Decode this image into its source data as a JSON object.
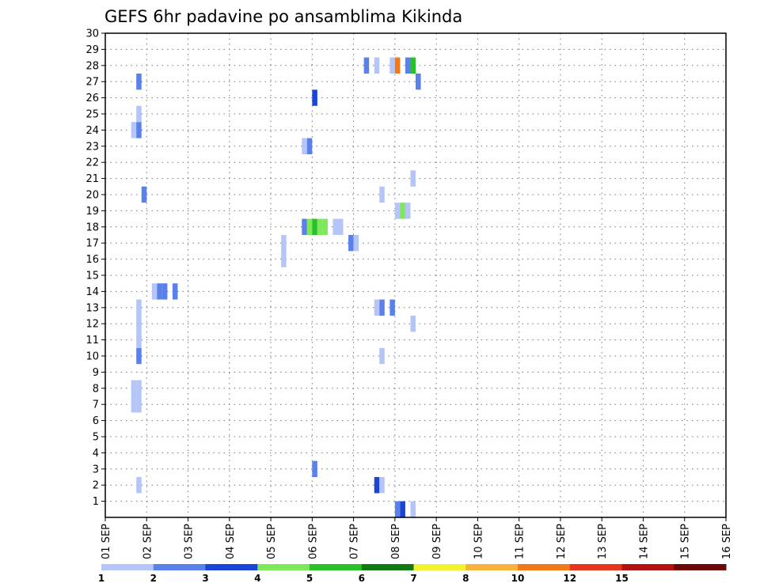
{
  "chart_data": {
    "type": "heatmap",
    "title": "GEFS 6hr padavine po ansamblima Kikinda",
    "x_labels": [
      "01 SEP",
      "02 SEP",
      "03 SEP",
      "04 SEP",
      "05 SEP",
      "06 SEP",
      "07 SEP",
      "08 SEP",
      "09 SEP",
      "10 SEP",
      "11 SEP",
      "12 SEP",
      "13 SEP",
      "14 SEP",
      "15 SEP",
      "16 SEP"
    ],
    "xlim": [
      0,
      60
    ],
    "ylim": [
      0,
      30
    ],
    "y_ticks": [
      1,
      2,
      3,
      4,
      5,
      6,
      7,
      8,
      9,
      10,
      11,
      12,
      13,
      14,
      15,
      16,
      17,
      18,
      19,
      20,
      21,
      22,
      23,
      24,
      25,
      26,
      27,
      28,
      29,
      30
    ],
    "grid": true,
    "color_levels": [
      1,
      2,
      3,
      4,
      5,
      6,
      7,
      8,
      10,
      12,
      15,
      20
    ],
    "level_colors": [
      "#b5c5f7",
      "#5a80ea",
      "#1a45d6",
      "#7ee85a",
      "#28c228",
      "#127a12",
      "#f2f230",
      "#f8b43a",
      "#f57818",
      "#e5351a",
      "#b21212",
      "#6e0808"
    ],
    "cells": [
      {
        "t": 2.75,
        "m": 24,
        "v": 1
      },
      {
        "t": 3.25,
        "m": 24,
        "v": 2
      },
      {
        "t": 3.25,
        "m": 25,
        "v": 1
      },
      {
        "t": 3.25,
        "m": 27,
        "v": 2
      },
      {
        "t": 3.75,
        "m": 20,
        "v": 2
      },
      {
        "t": 2.75,
        "m": 7,
        "v": 1
      },
      {
        "t": 3.25,
        "m": 7,
        "v": 1
      },
      {
        "t": 2.75,
        "m": 8,
        "v": 1
      },
      {
        "t": 3.25,
        "m": 8,
        "v": 1
      },
      {
        "t": 3.25,
        "m": 10,
        "v": 2
      },
      {
        "t": 3.25,
        "m": 11,
        "v": 1
      },
      {
        "t": 3.25,
        "m": 12,
        "v": 1
      },
      {
        "t": 3.25,
        "m": 13,
        "v": 1
      },
      {
        "t": 3.25,
        "m": 2,
        "v": 1
      },
      {
        "t": 4.75,
        "m": 14,
        "v": 1
      },
      {
        "t": 5.25,
        "m": 14,
        "v": 2
      },
      {
        "t": 5.75,
        "m": 14,
        "v": 2
      },
      {
        "t": 6.75,
        "m": 14,
        "v": 2
      },
      {
        "t": 17.25,
        "m": 16,
        "v": 1
      },
      {
        "t": 17.25,
        "m": 17,
        "v": 1
      },
      {
        "t": 19.25,
        "m": 23,
        "v": 1
      },
      {
        "t": 19.75,
        "m": 23,
        "v": 2
      },
      {
        "t": 20.25,
        "m": 26,
        "v": 3
      },
      {
        "t": 19.25,
        "m": 18,
        "v": 2
      },
      {
        "t": 19.75,
        "m": 18,
        "v": 4
      },
      {
        "t": 20.25,
        "m": 18,
        "v": 5
      },
      {
        "t": 20.75,
        "m": 18,
        "v": 4
      },
      {
        "t": 21.25,
        "m": 18,
        "v": 4
      },
      {
        "t": 22.25,
        "m": 18,
        "v": 1
      },
      {
        "t": 22.75,
        "m": 18,
        "v": 1
      },
      {
        "t": 20.25,
        "m": 3,
        "v": 2
      },
      {
        "t": 23.75,
        "m": 17,
        "v": 2
      },
      {
        "t": 24.25,
        "m": 17,
        "v": 1
      },
      {
        "t": 25.25,
        "m": 28,
        "v": 2
      },
      {
        "t": 26.25,
        "m": 28,
        "v": 1
      },
      {
        "t": 27.75,
        "m": 28,
        "v": 1
      },
      {
        "t": 28.25,
        "m": 28,
        "v": 10
      },
      {
        "t": 29.25,
        "m": 28,
        "v": 2
      },
      {
        "t": 29.75,
        "m": 28,
        "v": 5
      },
      {
        "t": 30.25,
        "m": 27,
        "v": 2
      },
      {
        "t": 26.75,
        "m": 20,
        "v": 1
      },
      {
        "t": 28.25,
        "m": 19,
        "v": 1
      },
      {
        "t": 28.75,
        "m": 19,
        "v": 4
      },
      {
        "t": 29.25,
        "m": 19,
        "v": 1
      },
      {
        "t": 29.75,
        "m": 21,
        "v": 1
      },
      {
        "t": 26.25,
        "m": 13,
        "v": 1
      },
      {
        "t": 26.75,
        "m": 13,
        "v": 2
      },
      {
        "t": 27.75,
        "m": 13,
        "v": 2
      },
      {
        "t": 29.75,
        "m": 12,
        "v": 1
      },
      {
        "t": 26.75,
        "m": 10,
        "v": 1
      },
      {
        "t": 26.25,
        "m": 2,
        "v": 3
      },
      {
        "t": 26.75,
        "m": 2,
        "v": 1
      },
      {
        "t": 28.25,
        "m": 0.5,
        "v": 2
      },
      {
        "t": 28.75,
        "m": 0.5,
        "v": 3
      },
      {
        "t": 29.75,
        "m": 0.5,
        "v": 1
      }
    ]
  }
}
